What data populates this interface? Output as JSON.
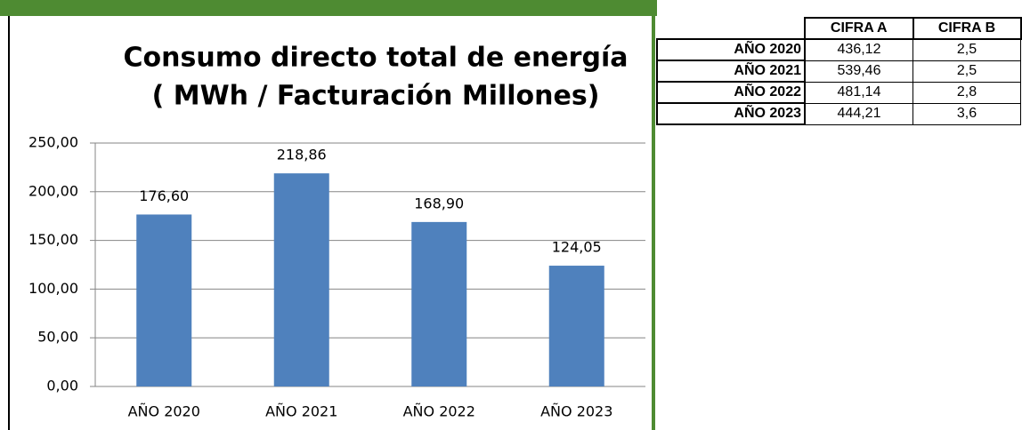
{
  "chart_data": {
    "type": "bar",
    "title": [
      "Consumo directo total de energía",
      "( MWh / Facturación Millones)"
    ],
    "categories": [
      "AÑO 2020",
      "AÑO 2021",
      "AÑO 2022",
      "AÑO 2023"
    ],
    "values": [
      176.6,
      218.86,
      168.9,
      124.05
    ],
    "value_labels": [
      "176,60",
      "218,86",
      "168,90",
      "124,05"
    ],
    "color": "#4f81bd",
    "ylim": [
      0,
      250
    ],
    "yticks": [
      {
        "value": 0,
        "label": "0,00"
      },
      {
        "value": 50,
        "label": "50,00"
      },
      {
        "value": 100,
        "label": "100,00"
      },
      {
        "value": 150,
        "label": "150,00"
      },
      {
        "value": 200,
        "label": "200,00"
      },
      {
        "value": 250,
        "label": "250,00"
      }
    ],
    "grid": true
  },
  "table": {
    "header": [
      "CIFRA A",
      "CIFRA B"
    ],
    "rows": [
      [
        "AÑO 2020",
        "436,12",
        "2,5"
      ],
      [
        "AÑO 2021",
        "539,46",
        "2,5"
      ],
      [
        "AÑO 2022",
        "481,14",
        "2,8"
      ],
      [
        "AÑO 2023",
        "444,21",
        "3,6"
      ]
    ]
  }
}
